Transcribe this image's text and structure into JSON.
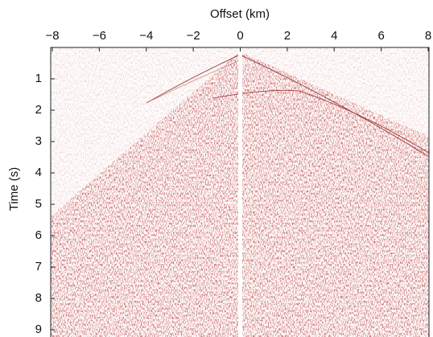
{
  "chart_data": {
    "type": "seismic",
    "x_label": "Offset (km)",
    "y_label": "Time (s)",
    "xlim": [
      -8,
      8
    ],
    "xticks": [
      {
        "value": -8,
        "label": "−8"
      },
      {
        "value": -6,
        "label": "−6"
      },
      {
        "value": -4,
        "label": "−4"
      },
      {
        "value": -2,
        "label": "−2"
      },
      0,
      2,
      4,
      6,
      8
    ],
    "ylim": [
      0,
      9
    ],
    "yticks": [
      1,
      2,
      3,
      4,
      5,
      6,
      7,
      8,
      9
    ],
    "color": "#8b1a1a"
  }
}
